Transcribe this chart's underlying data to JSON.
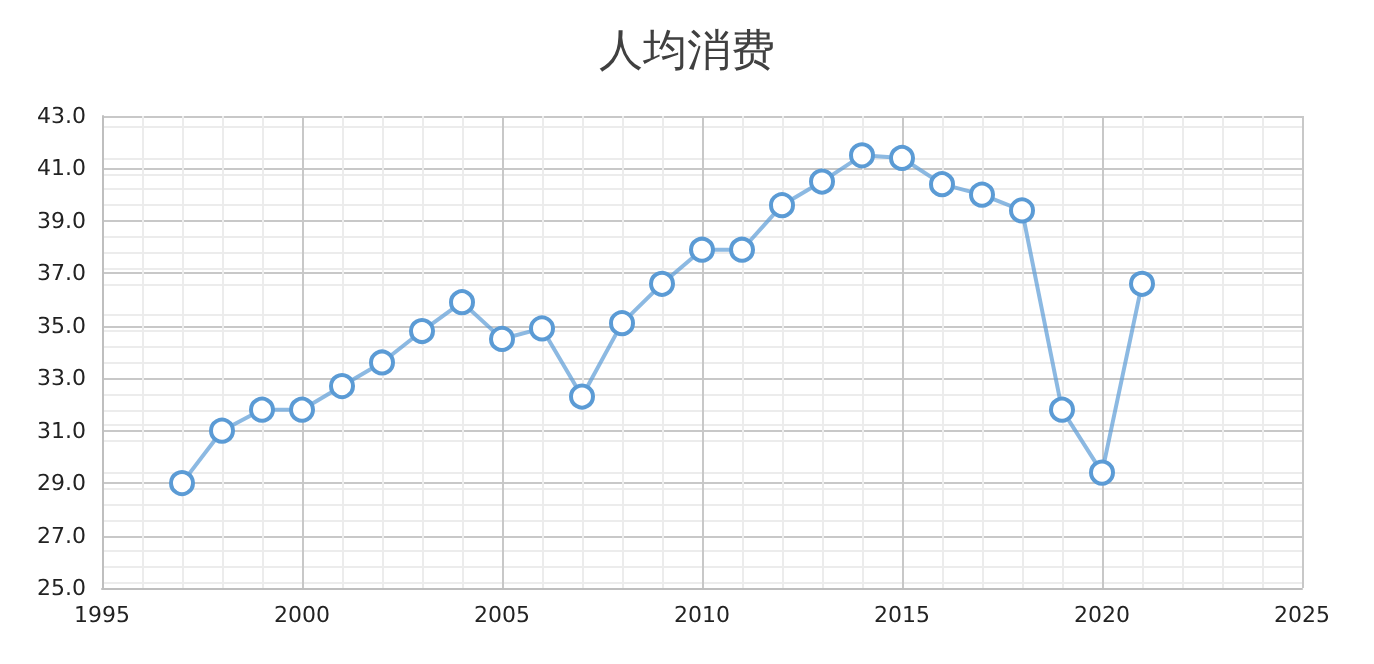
{
  "chart_data": {
    "type": "line",
    "title": "人均消费",
    "x": [
      1997,
      1998,
      1999,
      2000,
      2001,
      2002,
      2003,
      2004,
      2005,
      2006,
      2007,
      2008,
      2009,
      2010,
      2011,
      2012,
      2013,
      2014,
      2015,
      2016,
      2017,
      2018,
      2019,
      2020,
      2021
    ],
    "series": [
      {
        "color": "#5b9bd5",
        "values": [
          29.0,
          31.0,
          31.8,
          31.8,
          32.7,
          33.6,
          34.8,
          35.9,
          34.5,
          34.9,
          32.3,
          35.1,
          36.6,
          37.9,
          37.9,
          39.6,
          40.5,
          41.5,
          41.4,
          40.4,
          40.0,
          39.4,
          31.8,
          29.4,
          36.6
        ]
      }
    ],
    "xlim": [
      1995,
      2025
    ],
    "xticks": [
      1995,
      2000,
      2005,
      2010,
      2015,
      2020,
      2025
    ],
    "ylim": [
      25,
      43
    ],
    "yticks": [
      {
        "value": 25,
        "label": "25.0"
      },
      {
        "value": 27,
        "label": "27.0"
      },
      {
        "value": 29,
        "label": "29.0"
      },
      {
        "value": 31,
        "label": "31.0"
      },
      {
        "value": 33,
        "label": "33.0"
      },
      {
        "value": 35,
        "label": "35.0"
      },
      {
        "value": 37,
        "label": "37.0"
      },
      {
        "value": 39,
        "label": "39.0"
      },
      {
        "value": 41,
        "label": "41.0"
      },
      {
        "value": 43,
        "label": "43.0"
      }
    ],
    "grid": true,
    "marker": "circle",
    "line_style": "solid"
  }
}
